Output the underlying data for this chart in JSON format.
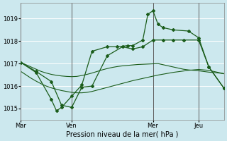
{
  "xlabel": "Pression niveau de la mer( hPa )",
  "bg_color": "#cce8ee",
  "grid_color": "#ffffff",
  "line_color": "#1a5c1a",
  "ylim": [
    1014.5,
    1019.7
  ],
  "yticks": [
    1015,
    1016,
    1017,
    1018,
    1019
  ],
  "xlim": [
    0,
    40
  ],
  "day_positions": [
    0,
    10,
    26,
    35
  ],
  "day_labels": [
    "Mar",
    "Ven",
    "Mer",
    "Jeu"
  ],
  "vline_positions": [
    0,
    10,
    26,
    35
  ],
  "smooth1_x": [
    0,
    1,
    2,
    3,
    4,
    5,
    6,
    7,
    8,
    9,
    10,
    11,
    12,
    13,
    14,
    15,
    16,
    17,
    18,
    19,
    20,
    21,
    22,
    23,
    24,
    25,
    26,
    27,
    28,
    29,
    30,
    31,
    32,
    33,
    34,
    35,
    36,
    37,
    38,
    39,
    40
  ],
  "smooth1_y": [
    1017.05,
    1016.95,
    1016.85,
    1016.75,
    1016.65,
    1016.58,
    1016.52,
    1016.48,
    1016.45,
    1016.43,
    1016.42,
    1016.43,
    1016.47,
    1016.52,
    1016.58,
    1016.65,
    1016.72,
    1016.78,
    1016.83,
    1016.87,
    1016.9,
    1016.92,
    1016.94,
    1016.96,
    1016.97,
    1016.98,
    1016.99,
    1017.0,
    1016.95,
    1016.9,
    1016.85,
    1016.8,
    1016.75,
    1016.72,
    1016.7,
    1016.68,
    1016.65,
    1016.62,
    1016.6,
    1016.58,
    1016.55
  ],
  "smooth2_x": [
    0,
    1,
    2,
    3,
    4,
    5,
    6,
    7,
    8,
    9,
    10,
    11,
    12,
    13,
    14,
    15,
    16,
    17,
    18,
    19,
    20,
    21,
    22,
    23,
    24,
    25,
    26,
    27,
    28,
    29,
    30,
    31,
    32,
    33,
    34,
    35,
    36,
    37,
    38,
    39,
    40
  ],
  "smooth2_y": [
    1016.65,
    1016.5,
    1016.35,
    1016.22,
    1016.1,
    1016.0,
    1015.92,
    1015.86,
    1015.8,
    1015.76,
    1015.72,
    1015.7,
    1015.7,
    1015.72,
    1015.76,
    1015.82,
    1015.88,
    1015.94,
    1016.0,
    1016.06,
    1016.12,
    1016.18,
    1016.24,
    1016.29,
    1016.34,
    1016.39,
    1016.44,
    1016.49,
    1016.53,
    1016.57,
    1016.61,
    1016.64,
    1016.67,
    1016.7,
    1016.72,
    1016.74,
    1016.72,
    1016.7,
    1016.65,
    1016.6,
    1016.55
  ],
  "volatile1_x": [
    0,
    3,
    6,
    8,
    10,
    12,
    14,
    17,
    20,
    22,
    24,
    26,
    28,
    30,
    32,
    35,
    37,
    40
  ],
  "volatile1_y": [
    1017.05,
    1016.65,
    1016.2,
    1015.15,
    1015.05,
    1015.95,
    1016.0,
    1017.35,
    1017.75,
    1017.65,
    1017.75,
    1018.05,
    1018.05,
    1018.05,
    1018.05,
    1018.05,
    1016.85,
    1015.9
  ],
  "volatile2_x": [
    0,
    3,
    6,
    7,
    8,
    10,
    12,
    14,
    17,
    19,
    21,
    22,
    24,
    25,
    26,
    27,
    28,
    30,
    33,
    35,
    37,
    40
  ],
  "volatile2_y": [
    1017.05,
    1016.6,
    1015.4,
    1014.9,
    1015.05,
    1015.55,
    1016.05,
    1017.55,
    1017.75,
    1017.75,
    1017.8,
    1017.8,
    1018.05,
    1019.2,
    1019.35,
    1018.75,
    1018.6,
    1018.5,
    1018.45,
    1018.15,
    1016.85,
    1015.9
  ]
}
